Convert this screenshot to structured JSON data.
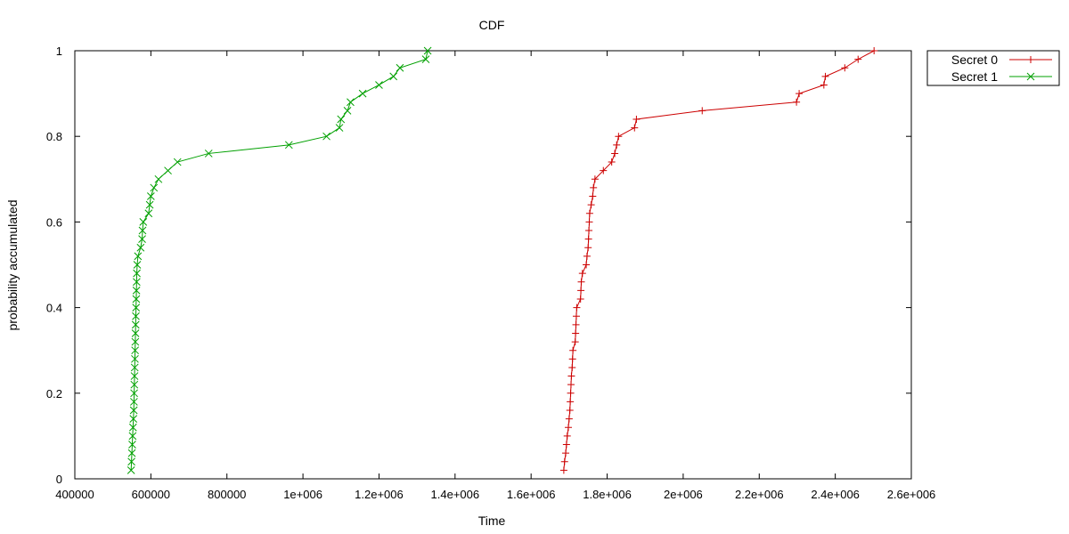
{
  "chart_data": {
    "type": "line",
    "title": "CDF",
    "xlabel": "Time",
    "ylabel": "probability accumulated",
    "xlim": [
      400000,
      2600000
    ],
    "ylim": [
      0,
      1
    ],
    "x_ticks": [
      400000,
      600000,
      800000,
      1000000,
      1200000,
      1400000,
      1600000,
      1800000,
      2000000,
      2200000,
      2400000,
      2600000
    ],
    "x_tick_labels": [
      "400000",
      "600000",
      "800000",
      "1e+006",
      "1.2e+006",
      "1.4e+006",
      "1.6e+006",
      "1.8e+006",
      "2e+006",
      "2.2e+006",
      "2.4e+006",
      "2.6e+006"
    ],
    "y_ticks": [
      0,
      0.2,
      0.4,
      0.6,
      0.8,
      1
    ],
    "y_tick_labels": [
      "0",
      "0.2",
      "0.4",
      "0.6",
      "0.8",
      "1"
    ],
    "grid": false,
    "legend_position": "outside-top-right",
    "series": [
      {
        "name": "Secret 0",
        "color": "#cc0000",
        "marker": "plus",
        "points": [
          [
            1686000,
            0.02
          ],
          [
            1688000,
            0.04
          ],
          [
            1691000,
            0.06
          ],
          [
            1693000,
            0.08
          ],
          [
            1695000,
            0.1
          ],
          [
            1698000,
            0.12
          ],
          [
            1700000,
            0.14
          ],
          [
            1702000,
            0.16
          ],
          [
            1703000,
            0.18
          ],
          [
            1704000,
            0.2
          ],
          [
            1705000,
            0.22
          ],
          [
            1706000,
            0.24
          ],
          [
            1708000,
            0.26
          ],
          [
            1709000,
            0.28
          ],
          [
            1710000,
            0.3
          ],
          [
            1716000,
            0.32
          ],
          [
            1717000,
            0.34
          ],
          [
            1718000,
            0.36
          ],
          [
            1719000,
            0.38
          ],
          [
            1720000,
            0.4
          ],
          [
            1730000,
            0.42
          ],
          [
            1731000,
            0.44
          ],
          [
            1732000,
            0.46
          ],
          [
            1735000,
            0.48
          ],
          [
            1745000,
            0.5
          ],
          [
            1747000,
            0.52
          ],
          [
            1750000,
            0.54
          ],
          [
            1751000,
            0.56
          ],
          [
            1752000,
            0.58
          ],
          [
            1753000,
            0.6
          ],
          [
            1754000,
            0.62
          ],
          [
            1758000,
            0.64
          ],
          [
            1762000,
            0.66
          ],
          [
            1764000,
            0.68
          ],
          [
            1768000,
            0.7
          ],
          [
            1790000,
            0.72
          ],
          [
            1812000,
            0.74
          ],
          [
            1820000,
            0.76
          ],
          [
            1825000,
            0.78
          ],
          [
            1830000,
            0.8
          ],
          [
            1872000,
            0.82
          ],
          [
            1877000,
            0.84
          ],
          [
            2050000,
            0.86
          ],
          [
            2298000,
            0.88
          ],
          [
            2305000,
            0.9
          ],
          [
            2370000,
            0.92
          ],
          [
            2374000,
            0.94
          ],
          [
            2425000,
            0.96
          ],
          [
            2460000,
            0.98
          ],
          [
            2502000,
            1.0
          ]
        ]
      },
      {
        "name": "Secret 1",
        "color": "#00a000",
        "marker": "x",
        "points": [
          [
            548000,
            0.02
          ],
          [
            549000,
            0.04
          ],
          [
            550000,
            0.06
          ],
          [
            551000,
            0.08
          ],
          [
            552000,
            0.1
          ],
          [
            553000,
            0.12
          ],
          [
            554000,
            0.14
          ],
          [
            555000,
            0.16
          ],
          [
            555500,
            0.18
          ],
          [
            556000,
            0.2
          ],
          [
            556500,
            0.22
          ],
          [
            557000,
            0.24
          ],
          [
            557500,
            0.26
          ],
          [
            558000,
            0.28
          ],
          [
            558500,
            0.3
          ],
          [
            559000,
            0.32
          ],
          [
            559500,
            0.34
          ],
          [
            560000,
            0.36
          ],
          [
            560500,
            0.38
          ],
          [
            561000,
            0.4
          ],
          [
            561500,
            0.42
          ],
          [
            562000,
            0.44
          ],
          [
            562500,
            0.46
          ],
          [
            563000,
            0.48
          ],
          [
            564000,
            0.5
          ],
          [
            566000,
            0.52
          ],
          [
            573000,
            0.54
          ],
          [
            577000,
            0.56
          ],
          [
            578000,
            0.58
          ],
          [
            580000,
            0.6
          ],
          [
            594000,
            0.62
          ],
          [
            597000,
            0.64
          ],
          [
            600000,
            0.66
          ],
          [
            608000,
            0.68
          ],
          [
            620000,
            0.7
          ],
          [
            645000,
            0.72
          ],
          [
            670000,
            0.74
          ],
          [
            752000,
            0.76
          ],
          [
            963000,
            0.78
          ],
          [
            1062000,
            0.8
          ],
          [
            1096000,
            0.82
          ],
          [
            1100000,
            0.84
          ],
          [
            1117000,
            0.86
          ],
          [
            1125000,
            0.88
          ],
          [
            1157000,
            0.9
          ],
          [
            1200000,
            0.92
          ],
          [
            1238000,
            0.94
          ],
          [
            1255000,
            0.96
          ],
          [
            1323000,
            0.98
          ],
          [
            1328000,
            1.0
          ]
        ]
      }
    ]
  }
}
